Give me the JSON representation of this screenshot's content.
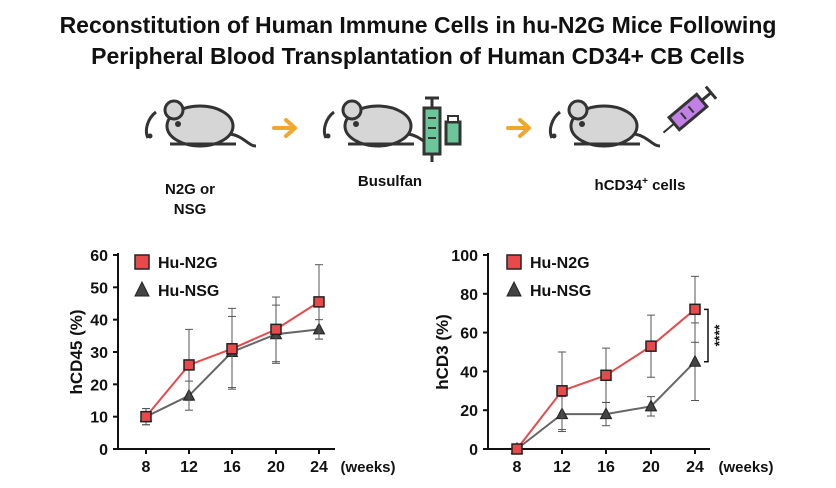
{
  "title": {
    "line1": "Reconstitution of Human Immune Cells in hu-N2G Mice Following",
    "line2": "Peripheral Blood Transplantation of Human CD34+ CB Cells"
  },
  "workflow": {
    "steps": [
      {
        "label_line1": "N2G or",
        "label_line2": "NSG",
        "icon": "mouse-icon"
      },
      {
        "label": "Busulfan",
        "icon": "mouse-with-syringe-and-vial-icon"
      },
      {
        "label_main": "hCD34",
        "label_sup": "+",
        "label_rest": " cells",
        "icon": "mouse-with-syringe-icon"
      }
    ],
    "arrow_icon": "arrow-right-icon"
  },
  "colors": {
    "hu_n2g": "#e8494b",
    "hu_nsg": "#666666",
    "mouse": "#d6d6d6",
    "arrow": "#f2a72b",
    "syringe_green": "#6bc79a",
    "syringe_purple": "#c080e6"
  },
  "chart_data": [
    {
      "type": "line",
      "ylabel": "hCD45 (%)",
      "xlabel": "(weeks)",
      "x": [
        8,
        12,
        16,
        20,
        24
      ],
      "ylim": [
        0,
        60
      ],
      "yticks": [
        0,
        10,
        20,
        30,
        40,
        50,
        60
      ],
      "legend_placement": "top-left",
      "series": [
        {
          "name": "Hu-N2G",
          "marker": "square",
          "color": "#e8494b",
          "values": [
            10,
            26,
            31,
            37,
            45.5
          ],
          "error": [
            2.5,
            11,
            12.5,
            10,
            11.5
          ]
        },
        {
          "name": "Hu-NSG",
          "marker": "triangle",
          "color": "#666666",
          "values": [
            10,
            16.5,
            30,
            35.5,
            37
          ],
          "error": [
            2.5,
            4.5,
            11,
            9,
            3
          ]
        }
      ]
    },
    {
      "type": "line",
      "ylabel": "hCD3 (%)",
      "xlabel": "(weeks)",
      "x": [
        8,
        12,
        16,
        20,
        24
      ],
      "ylim": [
        0,
        100
      ],
      "yticks": [
        0,
        20,
        40,
        60,
        80,
        100
      ],
      "legend_placement": "top-left",
      "significance": "****",
      "series": [
        {
          "name": "Hu-N2G",
          "marker": "square",
          "color": "#e8494b",
          "values": [
            0,
            30,
            38,
            53,
            72
          ],
          "error": [
            0,
            20,
            14,
            16,
            17
          ]
        },
        {
          "name": "Hu-NSG",
          "marker": "triangle",
          "color": "#666666",
          "values": [
            0,
            18,
            18,
            22,
            45
          ],
          "error": [
            0,
            9,
            6,
            5,
            20
          ]
        }
      ]
    }
  ]
}
